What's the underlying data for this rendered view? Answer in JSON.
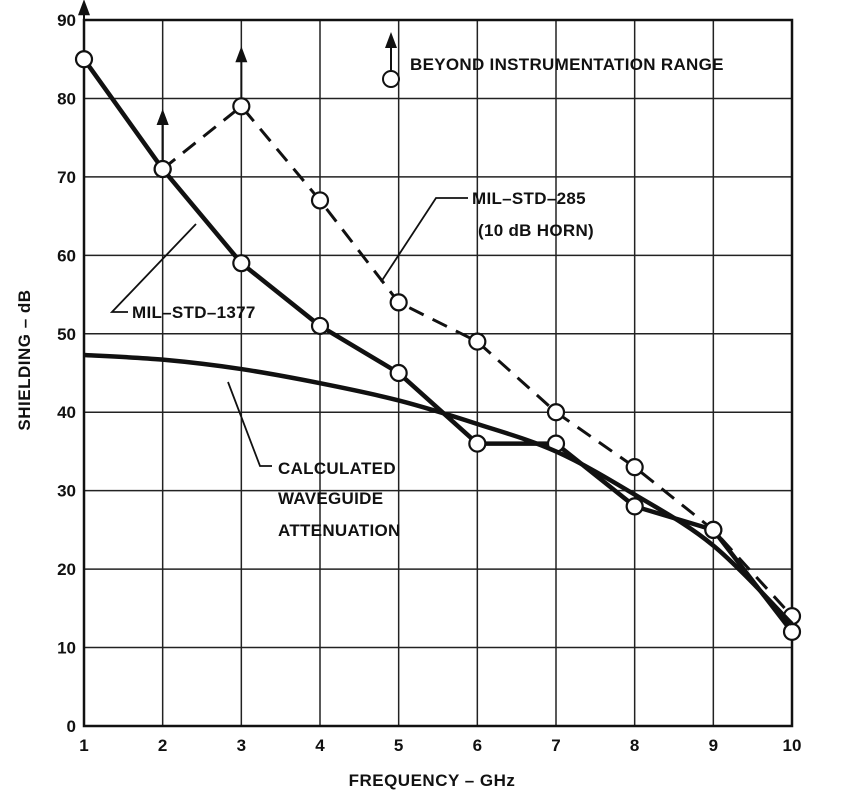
{
  "chart_data": {
    "type": "line",
    "xlabel": "FREQUENCY – GHz",
    "ylabel": "SHIELDING – dB",
    "xlim": [
      1,
      10
    ],
    "ylim": [
      0,
      90
    ],
    "x_ticks": [
      1,
      2,
      3,
      4,
      5,
      6,
      7,
      8,
      9,
      10
    ],
    "y_ticks": [
      0,
      10,
      20,
      30,
      40,
      50,
      60,
      70,
      80,
      90
    ],
    "grid": true,
    "legend_note": "BEYOND INSTRUMENTATION RANGE",
    "series": [
      {
        "name": "MIL–STD–1377",
        "style": "solid-thick",
        "markers": "open-circle",
        "points": [
          [
            1,
            85
          ],
          [
            2,
            71
          ],
          [
            3,
            59
          ],
          [
            4,
            51
          ],
          [
            5,
            45
          ],
          [
            6,
            36
          ],
          [
            7,
            36
          ],
          [
            8,
            28
          ],
          [
            9,
            25
          ],
          [
            10,
            12
          ]
        ],
        "beyond_range_x": [
          1,
          2
        ]
      },
      {
        "name": "MIL–STD–285",
        "name_line2": "(10 dB HORN)",
        "style": "dashed",
        "markers": "open-circle",
        "points": [
          [
            2,
            71
          ],
          [
            3,
            79
          ],
          [
            4,
            67
          ],
          [
            5,
            54
          ],
          [
            6,
            49
          ],
          [
            7,
            40
          ],
          [
            8,
            33
          ],
          [
            9,
            25
          ],
          [
            10,
            14
          ]
        ],
        "beyond_range_x": [
          2,
          3
        ]
      },
      {
        "name": "CALCULATED",
        "name_line2": "WAVEGUIDE",
        "name_line3": "ATTENUATION",
        "style": "solid-smooth",
        "markers": "none",
        "points": [
          [
            1,
            47.3
          ],
          [
            2,
            46.7
          ],
          [
            3,
            45.5
          ],
          [
            4,
            43.7
          ],
          [
            5,
            41.5
          ],
          [
            6,
            38.5
          ],
          [
            7,
            35
          ],
          [
            8,
            29.5
          ],
          [
            9,
            23
          ],
          [
            10,
            13
          ]
        ]
      }
    ],
    "colors": {
      "line": "#111111",
      "grid": "#222222",
      "background": "#ffffff"
    }
  }
}
